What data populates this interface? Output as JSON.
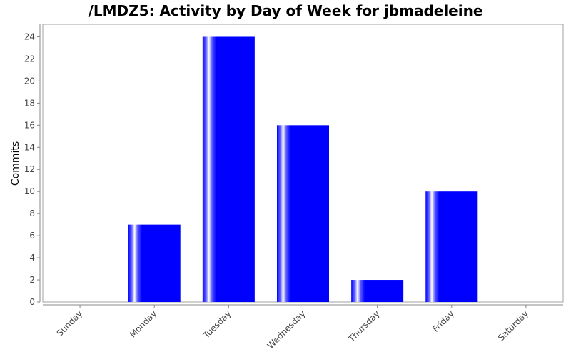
{
  "chart_data": {
    "type": "bar",
    "title": "/LMDZ5: Activity by Day of Week for jbmadeleine",
    "xlabel": "",
    "ylabel": "Commits",
    "categories": [
      "Sunday",
      "Monday",
      "Tuesday",
      "Wednesday",
      "Thursday",
      "Friday",
      "Saturday"
    ],
    "values": [
      0,
      7,
      24,
      16,
      2,
      10,
      0
    ],
    "ylim": [
      0,
      25
    ],
    "yticks": [
      "0",
      "2",
      "4",
      "6",
      "8",
      "10",
      "12",
      "14",
      "16",
      "18",
      "20",
      "22",
      "24"
    ],
    "bar_color": "#0000ff",
    "plot_background": "#ffffff",
    "legend": "none",
    "grid": false
  }
}
